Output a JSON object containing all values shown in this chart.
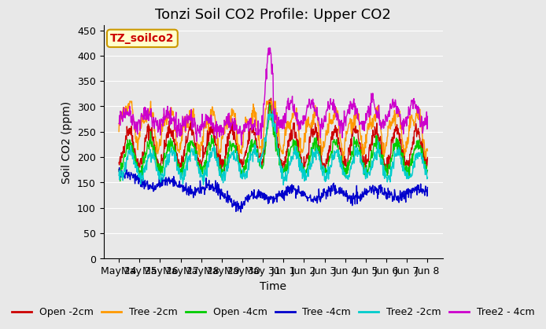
{
  "title": "Tonzi Soil CO2 Profile: Upper CO2",
  "xlabel": "Time",
  "ylabel": "Soil CO2 (ppm)",
  "ylim": [
    0,
    460
  ],
  "yticks": [
    0,
    50,
    100,
    150,
    200,
    250,
    300,
    350,
    400,
    450
  ],
  "background_color": "#e8e8e8",
  "plot_bg_color": "#e8e8e8",
  "legend_label": "TZ_soilco2",
  "series": {
    "Open_2cm": {
      "color": "#cc0000",
      "label": "Open -2cm"
    },
    "Tree_2cm": {
      "color": "#ff9900",
      "label": "Tree -2cm"
    },
    "Open_4cm": {
      "color": "#00cc00",
      "label": "Open -4cm"
    },
    "Tree_4cm": {
      "color": "#0000cc",
      "label": "Tree -4cm"
    },
    "Tree2_2cm": {
      "color": "#00cccc",
      "label": "Tree2 -2cm"
    },
    "Tree2_4cm": {
      "color": "#cc00cc",
      "label": "Tree2 - 4cm"
    }
  },
  "x_tick_labels": [
    "May 24",
    "May 25",
    "May 26",
    "May 27",
    "May 28",
    "May 29",
    "May 30",
    "May 31",
    "Jun 1",
    "Jun 2",
    "Jun 3",
    "Jun 4",
    "Jun 5",
    "Jun 6",
    "Jun 7",
    "Jun 8"
  ],
  "title_fontsize": 13,
  "axis_label_fontsize": 10,
  "tick_fontsize": 9,
  "legend_fontsize": 9
}
